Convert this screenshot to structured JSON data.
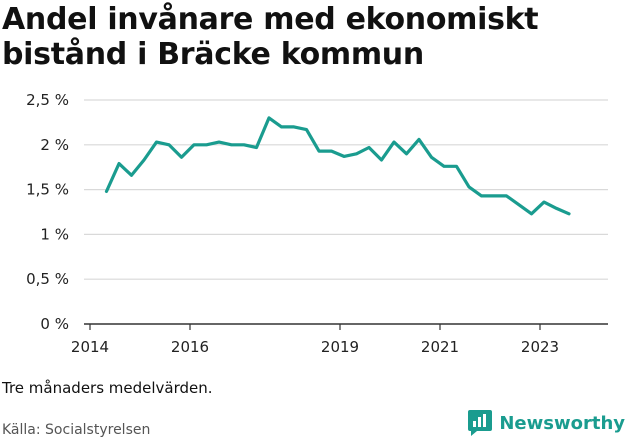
{
  "header": {
    "title_line1": "Andel invånare med ekonomiskt",
    "title_line2": "bistånd i Bräcke kommun"
  },
  "footer": {
    "note": "Tre månaders medelvärden.",
    "source": "Källa: Socialstyrelsen",
    "brand": "Newsworthy"
  },
  "colors": {
    "line": "#1a9c8f",
    "grid": "#d9d9d9",
    "brand": "#1a9c8f"
  },
  "chart_data": {
    "type": "line",
    "title": "Andel invånare med ekonomiskt bistånd i Bräcke kommun",
    "xlabel": "",
    "ylabel": "",
    "x_ticks": [
      "2014",
      "2016",
      "2019",
      "2021",
      "2023"
    ],
    "y_ticks": [
      "0 %",
      "0,5 %",
      "1 %",
      "1,5 %",
      "2 %",
      "2,5 %"
    ],
    "ylim": [
      0,
      2.5
    ],
    "xlim": [
      2014.0,
      2024.0
    ],
    "grid": true,
    "series": [
      {
        "x": [
          2014.33,
          2014.58,
          2014.83,
          2015.08,
          2015.33,
          2015.58,
          2015.83,
          2016.08,
          2016.33,
          2016.58,
          2016.83,
          2017.08,
          2017.33,
          2017.58,
          2017.83,
          2018.08,
          2018.33,
          2018.58,
          2018.83,
          2019.08,
          2019.33,
          2019.58,
          2019.83,
          2020.08,
          2020.33,
          2020.58,
          2020.83,
          2021.08,
          2021.33,
          2021.58,
          2021.83,
          2022.08,
          2022.33,
          2022.58,
          2022.83,
          2023.08,
          2023.33,
          2023.58
        ],
        "values": [
          1.48,
          1.79,
          1.66,
          1.83,
          2.03,
          2.0,
          1.86,
          2.0,
          2.0,
          2.03,
          2.0,
          2.0,
          1.97,
          2.3,
          2.2,
          2.2,
          2.17,
          1.93,
          1.93,
          1.87,
          1.9,
          1.97,
          1.83,
          2.03,
          1.9,
          2.06,
          1.86,
          1.76,
          1.76,
          1.53,
          1.43,
          1.43,
          1.43,
          1.33,
          1.23,
          1.36,
          1.29,
          1.23
        ]
      }
    ]
  }
}
